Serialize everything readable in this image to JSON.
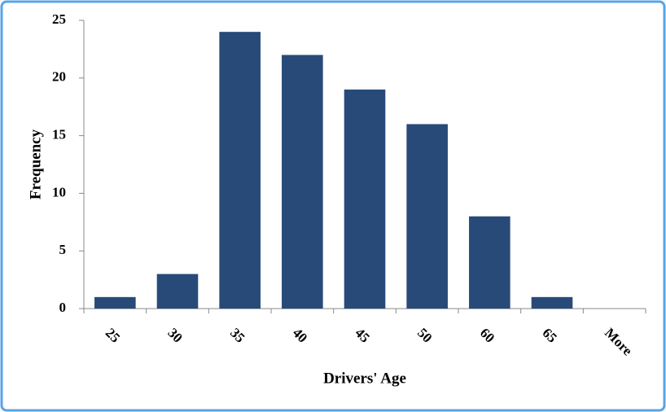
{
  "chart_data": {
    "type": "bar",
    "x_label": "Drivers' Age",
    "y_label": "Frequency",
    "categories": [
      "25",
      "30",
      "35",
      "40",
      "45",
      "50",
      "60",
      "65",
      "More"
    ],
    "values": [
      1,
      3,
      24,
      22,
      19,
      16,
      8,
      1,
      0
    ],
    "color": "#284a78",
    "ylim": [
      0,
      25
    ],
    "yticks": [
      0,
      5,
      10,
      15,
      20,
      25
    ],
    "grid": false
  }
}
